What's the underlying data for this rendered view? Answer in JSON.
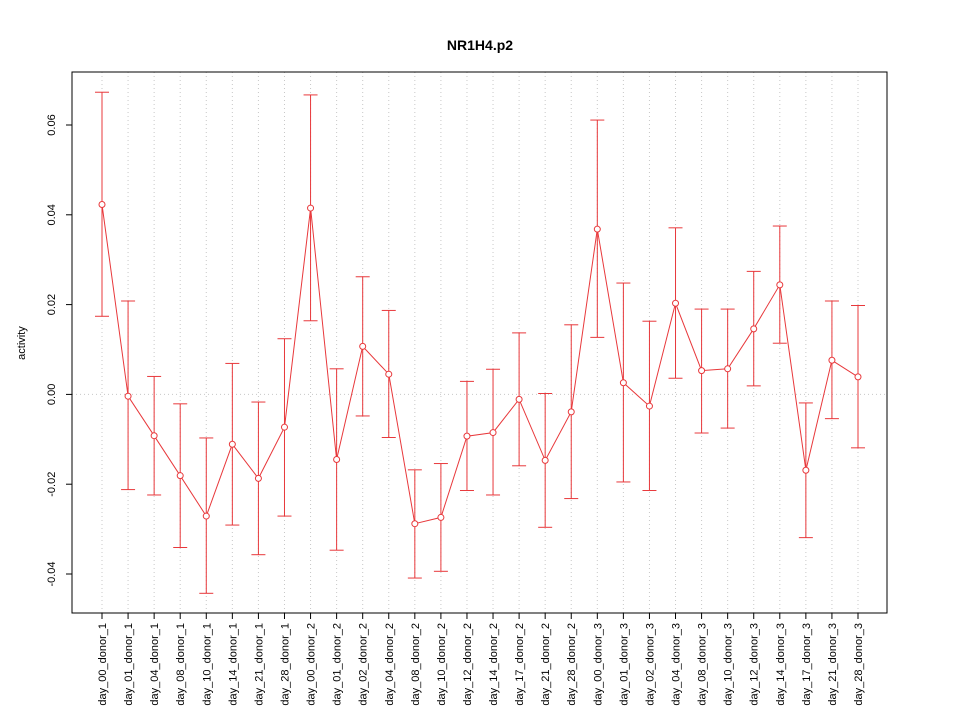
{
  "chart_data": {
    "type": "line",
    "title": "NR1H4.p2",
    "xlabel": "",
    "ylabel": "activity",
    "ylim": [
      -0.049,
      0.072
    ],
    "yticks": [
      -0.04,
      -0.02,
      0.0,
      0.02,
      0.04,
      0.06
    ],
    "ytick_labels": [
      "-0.04",
      "-0.02",
      "0.00",
      "0.02",
      "0.04",
      "0.06"
    ],
    "grid": "dotted vertical at each category, dotted horizontal at 0",
    "colors": {
      "series": "#e8383b",
      "grid": "#c8c8c8",
      "axis": "#000000"
    },
    "categories": [
      "day_00_donor_1",
      "day_01_donor_1",
      "day_04_donor_1",
      "day_08_donor_1",
      "day_10_donor_1",
      "day_14_donor_1",
      "day_21_donor_1",
      "day_28_donor_1",
      "day_00_donor_2",
      "day_01_donor_2",
      "day_02_donor_2",
      "day_04_donor_2",
      "day_08_donor_2",
      "day_10_donor_2",
      "day_12_donor_2",
      "day_14_donor_2",
      "day_17_donor_2",
      "day_21_donor_2",
      "day_28_donor_2",
      "day_00_donor_3",
      "day_01_donor_3",
      "day_02_donor_3",
      "day_04_donor_3",
      "day_08_donor_3",
      "day_10_donor_3",
      "day_12_donor_3",
      "day_14_donor_3",
      "day_17_donor_3",
      "day_21_donor_3",
      "day_28_donor_3"
    ],
    "series": [
      {
        "values": [
          0.0423,
          -0.0004,
          -0.0092,
          -0.0181,
          -0.0271,
          -0.0111,
          -0.0187,
          -0.0073,
          0.0415,
          -0.0145,
          0.0107,
          0.0045,
          -0.0288,
          -0.0274,
          -0.0093,
          -0.0085,
          -0.0011,
          -0.0147,
          -0.0039,
          0.0368,
          0.0026,
          -0.0026,
          0.0203,
          0.0053,
          0.0057,
          0.0146,
          0.0244,
          -0.0169,
          0.0076,
          0.0039
        ],
        "upper": [
          0.0673,
          0.0208,
          0.004,
          -0.0021,
          -0.0097,
          0.0069,
          -0.0017,
          0.0124,
          0.0667,
          0.0057,
          0.0262,
          0.0187,
          -0.0168,
          -0.0154,
          0.0029,
          0.0056,
          0.0137,
          0.0002,
          0.0155,
          0.0611,
          0.0248,
          0.0163,
          0.0371,
          0.019,
          0.019,
          0.0274,
          0.0375,
          -0.0019,
          0.0208,
          0.0198
        ],
        "lower": [
          0.0174,
          -0.0212,
          -0.0224,
          -0.0341,
          -0.0443,
          -0.0291,
          -0.0357,
          -0.0271,
          0.0164,
          -0.0347,
          -0.0048,
          -0.0096,
          -0.0409,
          -0.0394,
          -0.0214,
          -0.0224,
          -0.0159,
          -0.0296,
          -0.0232,
          0.0127,
          -0.0195,
          -0.0214,
          0.0036,
          -0.0086,
          -0.0075,
          0.0019,
          0.0114,
          -0.0319,
          -0.0054,
          -0.0119
        ]
      }
    ]
  }
}
